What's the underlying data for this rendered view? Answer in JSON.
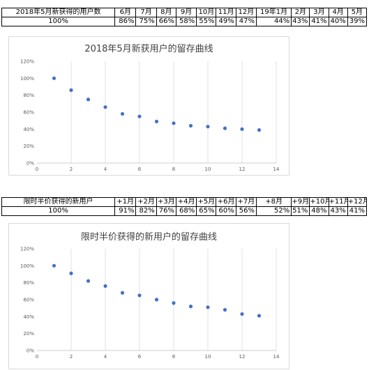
{
  "table1": {
    "header": [
      "2018年5月新获得的用户数",
      "6月",
      "7月",
      "8月",
      "9月",
      "10月",
      "11月",
      "12月",
      "19年1月",
      "2月",
      "3月",
      "4月",
      "5月"
    ],
    "values": [
      "100%",
      "86%",
      "75%",
      "66%",
      "58%",
      "55%",
      "49%",
      "47%",
      "44%",
      "43%",
      "41%",
      "40%",
      "39%"
    ]
  },
  "table2": {
    "header": [
      "限时半价获得的新用户",
      "+1月",
      "+2月",
      "+3月",
      "+4月",
      "+5月",
      "+6月",
      "+7月",
      "+8月",
      "+9月",
      "+10月",
      "+11月",
      "+12月"
    ],
    "values": [
      "100%",
      "91%",
      "82%",
      "76%",
      "68%",
      "65%",
      "60%",
      "56%",
      "52%",
      "51%",
      "48%",
      "43%",
      "41%"
    ]
  },
  "chart_data": [
    {
      "type": "scatter",
      "title": "2018年5月新获用户的留存曲线",
      "x": [
        1,
        2,
        3,
        4,
        5,
        6,
        7,
        8,
        9,
        10,
        11,
        12,
        13
      ],
      "y": [
        1.0,
        0.86,
        0.75,
        0.66,
        0.58,
        0.55,
        0.49,
        0.47,
        0.44,
        0.43,
        0.41,
        0.4,
        0.39
      ],
      "xlim": [
        0,
        14
      ],
      "ylim": [
        0,
        1.2
      ],
      "xticks": [
        "0",
        "2",
        "4",
        "6",
        "8",
        "10",
        "12",
        "14"
      ],
      "yticks": [
        "0%",
        "20%",
        "40%",
        "60%",
        "80%",
        "100%",
        "120%"
      ],
      "grid": "vertical",
      "color": "#4472c4"
    },
    {
      "type": "scatter",
      "title": "限时半价获得的新用户的留存曲线",
      "x": [
        1,
        2,
        3,
        4,
        5,
        6,
        7,
        8,
        9,
        10,
        11,
        12,
        13
      ],
      "y": [
        1.0,
        0.91,
        0.82,
        0.76,
        0.68,
        0.65,
        0.6,
        0.56,
        0.52,
        0.51,
        0.48,
        0.43,
        0.41
      ],
      "xlim": [
        0,
        14
      ],
      "ylim": [
        0,
        1.2
      ],
      "xticks": [
        "0",
        "2",
        "4",
        "6",
        "8",
        "10",
        "12",
        "14"
      ],
      "yticks": [
        "0%",
        "20%",
        "40%",
        "60%",
        "80%",
        "100%",
        "120%"
      ],
      "grid": "vertical",
      "color": "#4472c4"
    }
  ]
}
